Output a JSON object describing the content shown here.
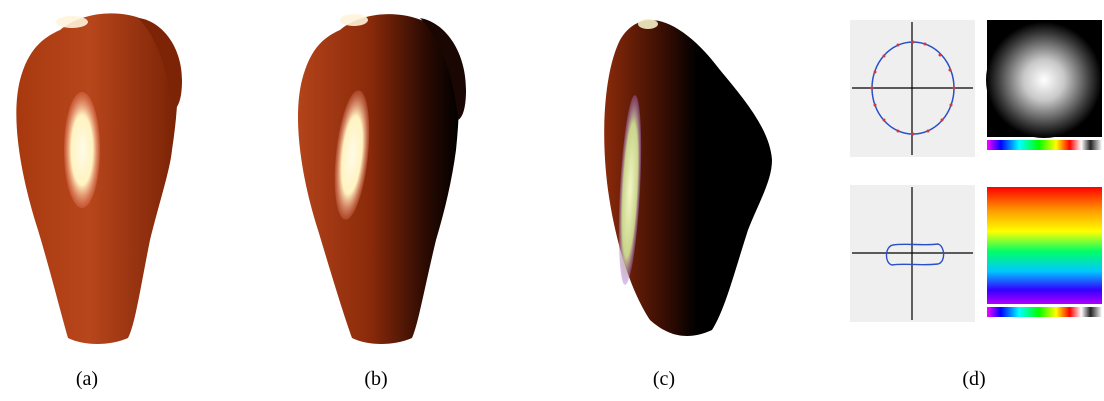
{
  "figure": {
    "captions": [
      "(a)",
      "(b)",
      "(c)",
      "(d)"
    ],
    "colors": {
      "body": "#8f2a0c",
      "body_light": "#b5411a",
      "highlight": "#fff9e0",
      "axis": "#000000",
      "curve": "#2a4fc9",
      "marker": "#d23a3a",
      "plot_bg": "#efefef"
    }
  }
}
